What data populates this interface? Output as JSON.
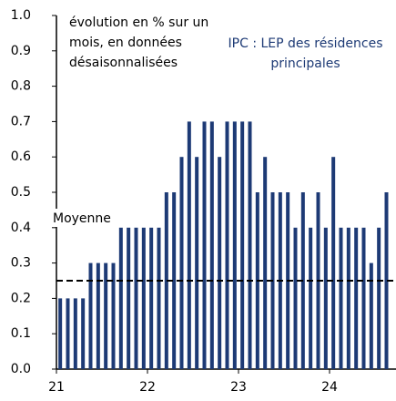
{
  "chart_data": {
    "type": "bar",
    "annotation": "évolution en % sur un mois, en données désaisonnalisées",
    "categories": [
      "21",
      null,
      null,
      null,
      null,
      null,
      null,
      null,
      null,
      null,
      null,
      null,
      "22",
      null,
      null,
      null,
      null,
      null,
      null,
      null,
      null,
      null,
      null,
      null,
      "23",
      null,
      null,
      null,
      null,
      null,
      null,
      null,
      null,
      null,
      null,
      null,
      "24",
      null,
      null,
      null,
      null,
      null,
      null,
      null
    ],
    "series": [
      {
        "name": "IPC : LEP des résidences principales",
        "color": "#1d3a75",
        "values": [
          0.2,
          0.2,
          0.2,
          0.2,
          0.3,
          0.3,
          0.3,
          0.3,
          0.4,
          0.4,
          0.4,
          0.4,
          0.4,
          0.4,
          0.5,
          0.5,
          0.6,
          0.7,
          0.6,
          0.7,
          0.7,
          0.6,
          0.7,
          0.7,
          0.7,
          0.7,
          0.5,
          0.6,
          0.5,
          0.5,
          0.5,
          0.4,
          0.5,
          0.4,
          0.5,
          0.4,
          0.6,
          0.4,
          0.4,
          0.4,
          0.4,
          0.3,
          0.4,
          0.5
        ]
      }
    ],
    "mean": {
      "label": "Moyenne",
      "value": 0.25
    },
    "ylim": [
      0,
      1
    ],
    "yticks": [
      {
        "value": 0,
        "label": "0.0"
      },
      0.1,
      0.2,
      0.3,
      0.4,
      0.5,
      0.6,
      0.7,
      0.8,
      0.9,
      {
        "value": 1,
        "label": "1.0"
      }
    ]
  }
}
